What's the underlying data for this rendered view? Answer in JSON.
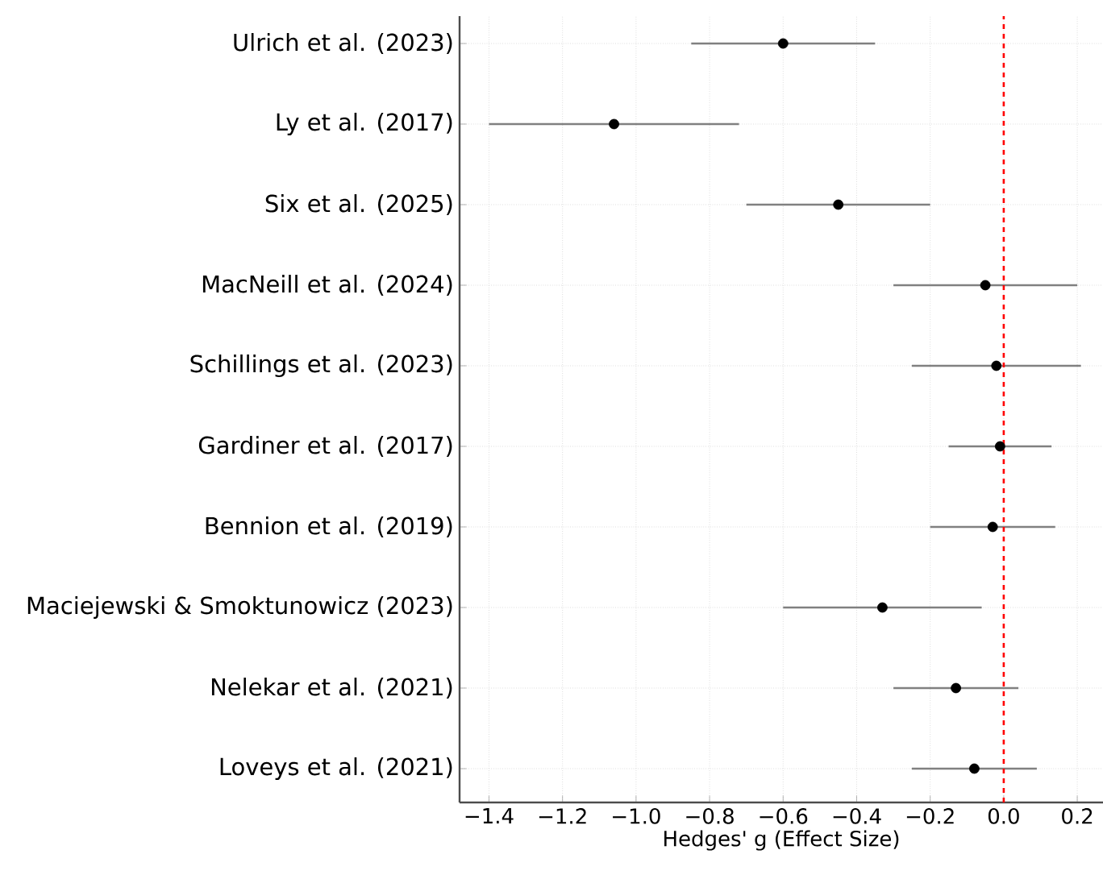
{
  "chart_data": {
    "type": "scatter",
    "orientation": "horizontal",
    "xlabel": "Hedges' g (Effect Size)",
    "categories": [
      "Ulrich et al. (2023)",
      "Ly et al. (2017)",
      "Six et al. (2025)",
      "MacNeill et al. (2024)",
      "Schillings et al. (2023)",
      "Gardiner et al. (2017)",
      "Bennion et al. (2019)",
      "Maciejewski & Smoktunowicz (2023)",
      "Nelekar et al. (2021)",
      "Loveys et al. (2021)"
    ],
    "values": [
      -0.6,
      -1.06,
      -0.45,
      -0.05,
      -0.02,
      -0.01,
      -0.03,
      -0.33,
      -0.13,
      -0.08
    ],
    "errors": [
      [
        -0.85,
        -0.35
      ],
      [
        -1.4,
        -0.72
      ],
      [
        -0.7,
        -0.2
      ],
      [
        -0.3,
        0.2
      ],
      [
        -0.25,
        0.21
      ],
      [
        -0.15,
        0.13
      ],
      [
        -0.2,
        0.14
      ],
      [
        -0.6,
        -0.06
      ],
      [
        -0.3,
        0.04
      ],
      [
        -0.25,
        0.09
      ]
    ],
    "color": "#000000",
    "marker": "circle",
    "xlim": [
      -1.48,
      0.27
    ],
    "xticks": [
      {
        "value": -1.4,
        "label": "−1.4"
      },
      {
        "value": -1.2,
        "label": "−1.2"
      },
      {
        "value": -1.0,
        "label": "−1.0"
      },
      {
        "value": -0.8,
        "label": "−0.8"
      },
      {
        "value": -0.6,
        "label": "−0.6"
      },
      {
        "value": -0.4,
        "label": "−0.4"
      },
      {
        "value": -0.2,
        "label": "−0.2"
      },
      {
        "value": 0.0,
        "label": "0.0"
      },
      {
        "value": 0.2,
        "label": "0.2"
      }
    ],
    "ref_lines": [
      {
        "axis": "x",
        "value": 0,
        "color": "#ff0000",
        "line_style": "dashed"
      }
    ],
    "grid": true
  }
}
